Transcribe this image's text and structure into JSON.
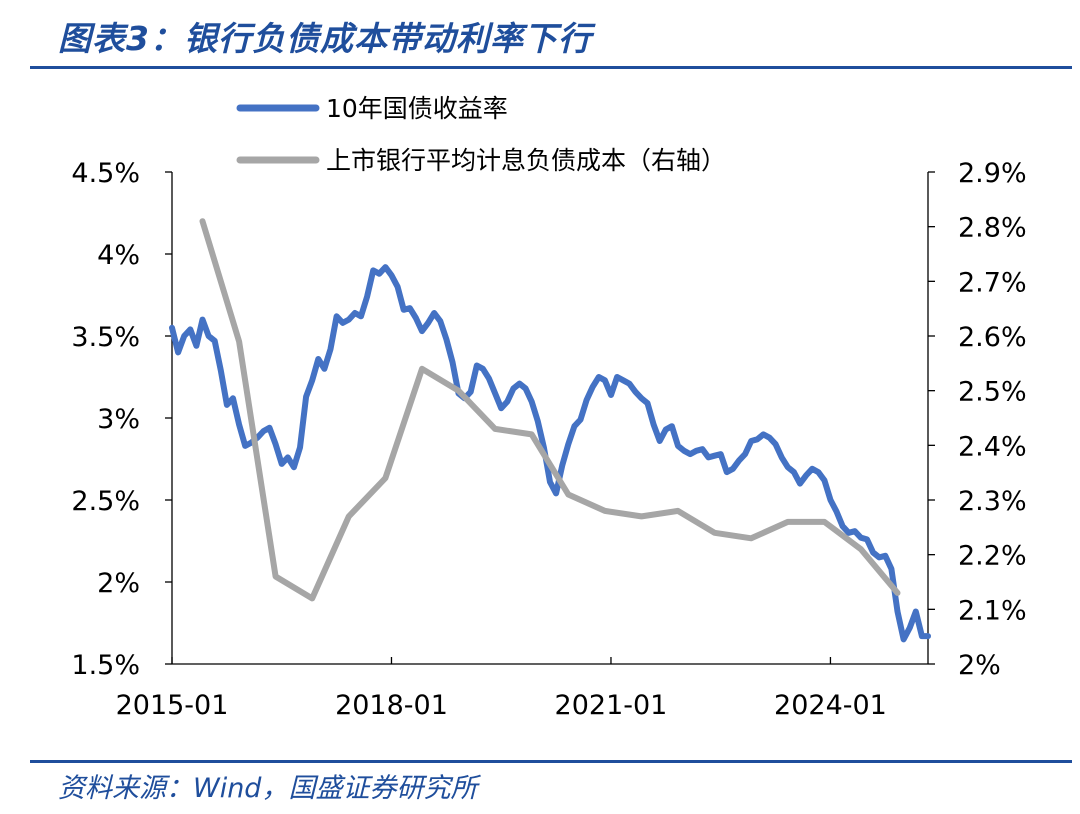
{
  "header": {
    "title": "图表3：银行负债成本带动利率下行"
  },
  "footer": {
    "source": "资料来源：Wind，国盛证券研究所"
  },
  "chart_data": {
    "type": "line",
    "title": "",
    "xlabel": "",
    "ylabel": "",
    "x_axis": {
      "start": "2015-01",
      "end": "2025-05",
      "ticks": [
        "2015-01",
        "2018-01",
        "2021-01",
        "2024-01"
      ]
    },
    "y_left": {
      "ylim": [
        1.5,
        4.5
      ],
      "ticks": [
        1.5,
        2,
        2.5,
        3,
        3.5,
        4,
        4.5
      ],
      "tick_labels": [
        "1.5%",
        "2%",
        "2.5%",
        "3%",
        "3.5%",
        "4%",
        "4.5%"
      ]
    },
    "y_right": {
      "ylim": [
        2.0,
        2.9
      ],
      "ticks": [
        2.0,
        2.1,
        2.2,
        2.3,
        2.4,
        2.5,
        2.6,
        2.7,
        2.8,
        2.9
      ],
      "tick_labels": [
        "2%",
        "2.1%",
        "2.2%",
        "2.3%",
        "2.4%",
        "2.5%",
        "2.6%",
        "2.7%",
        "2.8%",
        "2.9%"
      ]
    },
    "grid": false,
    "legend_position": "top-center",
    "series": [
      {
        "name": "10年国债收益率",
        "axis": "left",
        "color": "#4472c4",
        "points": [
          [
            "2015-01",
            3.55
          ],
          [
            "2015-02",
            3.4
          ],
          [
            "2015-03",
            3.5
          ],
          [
            "2015-04",
            3.54
          ],
          [
            "2015-05",
            3.44
          ],
          [
            "2015-06",
            3.6
          ],
          [
            "2015-07",
            3.5
          ],
          [
            "2015-08",
            3.47
          ],
          [
            "2015-09",
            3.29
          ],
          [
            "2015-10",
            3.08
          ],
          [
            "2015-11",
            3.12
          ],
          [
            "2015-12",
            2.96
          ],
          [
            "2016-01",
            2.83
          ],
          [
            "2016-02",
            2.85
          ],
          [
            "2016-03",
            2.88
          ],
          [
            "2016-04",
            2.92
          ],
          [
            "2016-05",
            2.94
          ],
          [
            "2016-06",
            2.84
          ],
          [
            "2016-07",
            2.72
          ],
          [
            "2016-08",
            2.76
          ],
          [
            "2016-09",
            2.7
          ],
          [
            "2016-10",
            2.82
          ],
          [
            "2016-11",
            3.13
          ],
          [
            "2016-12",
            3.23
          ],
          [
            "2017-01",
            3.36
          ],
          [
            "2017-02",
            3.3
          ],
          [
            "2017-03",
            3.42
          ],
          [
            "2017-04",
            3.62
          ],
          [
            "2017-05",
            3.58
          ],
          [
            "2017-06",
            3.6
          ],
          [
            "2017-07",
            3.64
          ],
          [
            "2017-08",
            3.62
          ],
          [
            "2017-09",
            3.74
          ],
          [
            "2017-10",
            3.9
          ],
          [
            "2017-11",
            3.88
          ],
          [
            "2017-12",
            3.92
          ],
          [
            "2018-01",
            3.87
          ],
          [
            "2018-02",
            3.8
          ],
          [
            "2018-03",
            3.66
          ],
          [
            "2018-04",
            3.67
          ],
          [
            "2018-05",
            3.61
          ],
          [
            "2018-06",
            3.53
          ],
          [
            "2018-07",
            3.58
          ],
          [
            "2018-08",
            3.64
          ],
          [
            "2018-09",
            3.59
          ],
          [
            "2018-10",
            3.48
          ],
          [
            "2018-11",
            3.34
          ],
          [
            "2018-12",
            3.15
          ],
          [
            "2019-01",
            3.12
          ],
          [
            "2019-02",
            3.16
          ],
          [
            "2019-03",
            3.32
          ],
          [
            "2019-04",
            3.3
          ],
          [
            "2019-05",
            3.24
          ],
          [
            "2019-06",
            3.15
          ],
          [
            "2019-07",
            3.06
          ],
          [
            "2019-08",
            3.1
          ],
          [
            "2019-09",
            3.18
          ],
          [
            "2019-10",
            3.21
          ],
          [
            "2019-11",
            3.18
          ],
          [
            "2019-12",
            3.1
          ],
          [
            "2020-01",
            2.98
          ],
          [
            "2020-02",
            2.82
          ],
          [
            "2020-03",
            2.61
          ],
          [
            "2020-04",
            2.54
          ],
          [
            "2020-05",
            2.71
          ],
          [
            "2020-06",
            2.84
          ],
          [
            "2020-07",
            2.95
          ],
          [
            "2020-08",
            2.99
          ],
          [
            "2020-09",
            3.11
          ],
          [
            "2020-10",
            3.19
          ],
          [
            "2020-11",
            3.25
          ],
          [
            "2020-12",
            3.23
          ],
          [
            "2021-01",
            3.14
          ],
          [
            "2021-02",
            3.25
          ],
          [
            "2021-03",
            3.23
          ],
          [
            "2021-04",
            3.21
          ],
          [
            "2021-05",
            3.16
          ],
          [
            "2021-06",
            3.12
          ],
          [
            "2021-07",
            3.09
          ],
          [
            "2021-08",
            2.96
          ],
          [
            "2021-09",
            2.86
          ],
          [
            "2021-10",
            2.93
          ],
          [
            "2021-11",
            2.95
          ],
          [
            "2021-12",
            2.83
          ],
          [
            "2022-01",
            2.8
          ],
          [
            "2022-02",
            2.78
          ],
          [
            "2022-03",
            2.8
          ],
          [
            "2022-04",
            2.81
          ],
          [
            "2022-05",
            2.76
          ],
          [
            "2022-06",
            2.77
          ],
          [
            "2022-07",
            2.78
          ],
          [
            "2022-08",
            2.67
          ],
          [
            "2022-09",
            2.69
          ],
          [
            "2022-10",
            2.74
          ],
          [
            "2022-11",
            2.78
          ],
          [
            "2022-12",
            2.86
          ],
          [
            "2023-01",
            2.87
          ],
          [
            "2023-02",
            2.9
          ],
          [
            "2023-03",
            2.88
          ],
          [
            "2023-04",
            2.84
          ],
          [
            "2023-05",
            2.76
          ],
          [
            "2023-06",
            2.7
          ],
          [
            "2023-07",
            2.67
          ],
          [
            "2023-08",
            2.6
          ],
          [
            "2023-09",
            2.65
          ],
          [
            "2023-10",
            2.69
          ],
          [
            "2023-11",
            2.67
          ],
          [
            "2023-12",
            2.62
          ],
          [
            "2024-01",
            2.5
          ],
          [
            "2024-02",
            2.43
          ],
          [
            "2024-03",
            2.34
          ],
          [
            "2024-04",
            2.3
          ],
          [
            "2024-05",
            2.31
          ],
          [
            "2024-06",
            2.27
          ],
          [
            "2024-07",
            2.26
          ],
          [
            "2024-08",
            2.18
          ],
          [
            "2024-09",
            2.15
          ],
          [
            "2024-10",
            2.16
          ],
          [
            "2024-11",
            2.08
          ],
          [
            "2024-12",
            1.82
          ],
          [
            "2025-01",
            1.65
          ],
          [
            "2025-02",
            1.72
          ],
          [
            "2025-03",
            1.82
          ],
          [
            "2025-04",
            1.67
          ],
          [
            "2025-05",
            1.67
          ]
        ]
      },
      {
        "name": "上市银行平均计息负债成本（右轴）",
        "axis": "right",
        "color": "#a6a6a6",
        "points": [
          [
            "2015-06",
            2.81
          ],
          [
            "2015-12",
            2.59
          ],
          [
            "2016-06",
            2.16
          ],
          [
            "2016-12",
            2.12
          ],
          [
            "2017-06",
            2.27
          ],
          [
            "2017-12",
            2.34
          ],
          [
            "2018-06",
            2.54
          ],
          [
            "2018-12",
            2.5
          ],
          [
            "2019-06",
            2.43
          ],
          [
            "2019-12",
            2.42
          ],
          [
            "2020-06",
            2.31
          ],
          [
            "2020-12",
            2.28
          ],
          [
            "2021-06",
            2.27
          ],
          [
            "2021-12",
            2.28
          ],
          [
            "2022-06",
            2.24
          ],
          [
            "2022-12",
            2.23
          ],
          [
            "2023-06",
            2.26
          ],
          [
            "2023-12",
            2.26
          ],
          [
            "2024-06",
            2.21
          ],
          [
            "2024-12",
            2.13
          ]
        ]
      }
    ]
  }
}
